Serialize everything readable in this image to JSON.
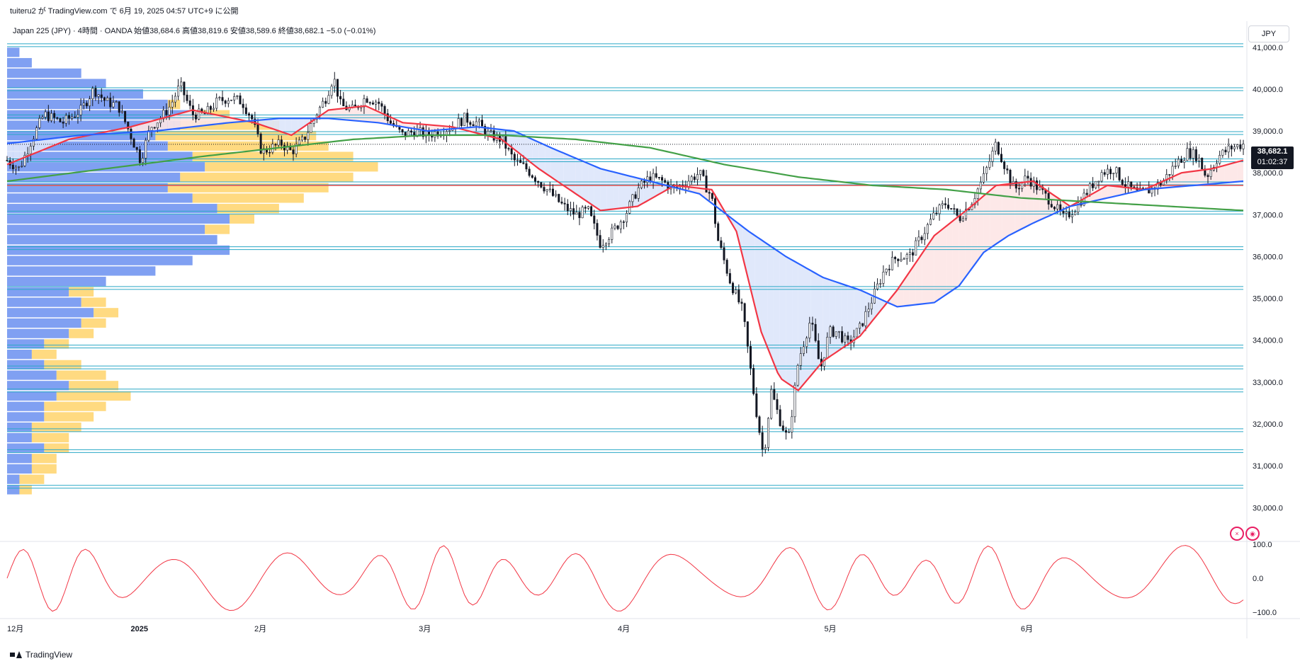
{
  "header": {
    "published_line": "tuiteru2 が TradingView.com で 6月 19, 2025 04:57 UTC+9 に公開",
    "legend": "Japan 225 (JPY) · 4時間 · OANDA  始値38,684.6  高値38,819.6  安値38,589.6  終値38,682.1  −5.0 (−0.01%)",
    "currency": "JPY"
  },
  "last_price": {
    "value": "38,682.1",
    "countdown": "01:02:37"
  },
  "footer": {
    "brand": "TradingView"
  },
  "colors": {
    "candle": "#131722",
    "ma_fast": "#f23645",
    "ma_mid": "#2962ff",
    "ma_slow": "#43a047",
    "level_line": "#2aa8c6",
    "hline_red": "#ef5350",
    "vp_up": "#6a8ff0",
    "vp_down": "#ffd36b",
    "fill_down": "#dde6fb",
    "fill_up": "#fde5e5",
    "oscillator": "#f23645"
  },
  "chart_data": [
    {
      "type": "line",
      "title": "Japan 225 (JPY) · 4時間 · OANDA",
      "x_ticks": [
        "12月",
        "2025",
        "2月",
        "3月",
        "4月",
        "5月",
        "6月"
      ],
      "x_tick_positions": [
        0.0,
        0.1,
        0.2,
        0.333,
        0.494,
        0.661,
        0.82
      ],
      "y_ticks": [
        "41,000.0",
        "40,000.0",
        "39,000.0",
        "38,000.0",
        "37,000.0",
        "36,000.0",
        "35,000.0",
        "34,000.0",
        "33,000.0",
        "32,000.0",
        "31,000.0",
        "30,000.0"
      ],
      "ylim": [
        29700,
        41200
      ],
      "price_close": [
        [
          0.0,
          38300
        ],
        [
          0.01,
          38100
        ],
        [
          0.02,
          38800
        ],
        [
          0.03,
          39400
        ],
        [
          0.045,
          39200
        ],
        [
          0.06,
          39500
        ],
        [
          0.07,
          40000
        ],
        [
          0.08,
          39700
        ],
        [
          0.09,
          39600
        ],
        [
          0.1,
          38900
        ],
        [
          0.108,
          38300
        ],
        [
          0.116,
          39100
        ],
        [
          0.124,
          39300
        ],
        [
          0.132,
          39600
        ],
        [
          0.14,
          40100
        ],
        [
          0.15,
          39400
        ],
        [
          0.16,
          39400
        ],
        [
          0.17,
          39700
        ],
        [
          0.18,
          39800
        ],
        [
          0.19,
          39700
        ],
        [
          0.198,
          39300
        ],
        [
          0.206,
          38500
        ],
        [
          0.214,
          38600
        ],
        [
          0.222,
          38700
        ],
        [
          0.23,
          38500
        ],
        [
          0.24,
          38800
        ],
        [
          0.25,
          39400
        ],
        [
          0.258,
          39800
        ],
        [
          0.264,
          40300
        ],
        [
          0.27,
          39600
        ],
        [
          0.28,
          39500
        ],
        [
          0.29,
          39800
        ],
        [
          0.3,
          39700
        ],
        [
          0.31,
          39200
        ],
        [
          0.32,
          38900
        ],
        [
          0.33,
          39000
        ],
        [
          0.34,
          38900
        ],
        [
          0.35,
          39000
        ],
        [
          0.36,
          39100
        ],
        [
          0.37,
          39300
        ],
        [
          0.38,
          39200
        ],
        [
          0.39,
          38900
        ],
        [
          0.4,
          38800
        ],
        [
          0.41,
          38300
        ],
        [
          0.42,
          38100
        ],
        [
          0.43,
          37800
        ],
        [
          0.44,
          37500
        ],
        [
          0.45,
          37200
        ],
        [
          0.46,
          37000
        ],
        [
          0.47,
          37100
        ],
        [
          0.48,
          36300
        ],
        [
          0.49,
          36600
        ],
        [
          0.5,
          37000
        ],
        [
          0.51,
          37600
        ],
        [
          0.52,
          37900
        ],
        [
          0.53,
          37800
        ],
        [
          0.54,
          37600
        ],
        [
          0.55,
          37800
        ],
        [
          0.56,
          38000
        ],
        [
          0.57,
          37400
        ],
        [
          0.575,
          36400
        ],
        [
          0.585,
          35400
        ],
        [
          0.595,
          34700
        ],
        [
          0.605,
          32500
        ],
        [
          0.612,
          31200
        ],
        [
          0.618,
          32800
        ],
        [
          0.625,
          32100
        ],
        [
          0.632,
          31600
        ],
        [
          0.64,
          33500
        ],
        [
          0.65,
          34500
        ],
        [
          0.658,
          33300
        ],
        [
          0.665,
          34200
        ],
        [
          0.672,
          34200
        ],
        [
          0.68,
          33900
        ],
        [
          0.69,
          34300
        ],
        [
          0.7,
          35000
        ],
        [
          0.71,
          35700
        ],
        [
          0.72,
          36000
        ],
        [
          0.73,
          36000
        ],
        [
          0.74,
          36500
        ],
        [
          0.75,
          37000
        ],
        [
          0.76,
          37300
        ],
        [
          0.77,
          36900
        ],
        [
          0.78,
          37300
        ],
        [
          0.79,
          37900
        ],
        [
          0.8,
          38700
        ],
        [
          0.808,
          38100
        ],
        [
          0.815,
          37600
        ],
        [
          0.825,
          37900
        ],
        [
          0.835,
          37600
        ],
        [
          0.845,
          37300
        ],
        [
          0.855,
          36900
        ],
        [
          0.865,
          37200
        ],
        [
          0.875,
          37600
        ],
        [
          0.885,
          38000
        ],
        [
          0.895,
          38100
        ],
        [
          0.905,
          37700
        ],
        [
          0.915,
          37500
        ],
        [
          0.925,
          37600
        ],
        [
          0.935,
          37800
        ],
        [
          0.945,
          38200
        ],
        [
          0.955,
          38500
        ],
        [
          0.963,
          38400
        ],
        [
          0.97,
          37900
        ],
        [
          0.98,
          38400
        ],
        [
          0.99,
          38600
        ],
        [
          1.0,
          38682
        ]
      ],
      "series": [
        {
          "name": "",
          "values": [
            [
              0.0,
              38200
            ],
            [
              0.05,
              38800
            ],
            [
              0.1,
              39100
            ],
            [
              0.15,
              39500
            ],
            [
              0.2,
              39200
            ],
            [
              0.23,
              38900
            ],
            [
              0.26,
              39500
            ],
            [
              0.29,
              39600
            ],
            [
              0.32,
              39200
            ],
            [
              0.36,
              39100
            ],
            [
              0.4,
              38800
            ],
            [
              0.43,
              38100
            ],
            [
              0.45,
              37700
            ],
            [
              0.48,
              37100
            ],
            [
              0.51,
              37200
            ],
            [
              0.54,
              37700
            ],
            [
              0.57,
              37600
            ],
            [
              0.59,
              36600
            ],
            [
              0.61,
              34200
            ],
            [
              0.625,
              33100
            ],
            [
              0.64,
              32800
            ],
            [
              0.66,
              33500
            ],
            [
              0.69,
              34100
            ],
            [
              0.72,
              35200
            ],
            [
              0.75,
              36500
            ],
            [
              0.78,
              37200
            ],
            [
              0.8,
              37700
            ],
            [
              0.83,
              37800
            ],
            [
              0.86,
              37200
            ],
            [
              0.89,
              37700
            ],
            [
              0.92,
              37600
            ],
            [
              0.95,
              38000
            ],
            [
              0.975,
              38100
            ],
            [
              1.0,
              38300
            ]
          ]
        },
        {
          "name": "",
          "values": [
            [
              0.0,
              38700
            ],
            [
              0.06,
              38900
            ],
            [
              0.12,
              39000
            ],
            [
              0.18,
              39200
            ],
            [
              0.22,
              39300
            ],
            [
              0.26,
              39300
            ],
            [
              0.3,
              39200
            ],
            [
              0.34,
              39000
            ],
            [
              0.38,
              39100
            ],
            [
              0.41,
              39000
            ],
            [
              0.44,
              38600
            ],
            [
              0.48,
              38100
            ],
            [
              0.52,
              37800
            ],
            [
              0.56,
              37500
            ],
            [
              0.6,
              36600
            ],
            [
              0.63,
              36000
            ],
            [
              0.66,
              35500
            ],
            [
              0.69,
              35200
            ],
            [
              0.72,
              34800
            ],
            [
              0.75,
              34900
            ],
            [
              0.77,
              35300
            ],
            [
              0.79,
              36100
            ],
            [
              0.81,
              36500
            ],
            [
              0.83,
              36800
            ],
            [
              0.86,
              37200
            ],
            [
              0.89,
              37400
            ],
            [
              0.92,
              37600
            ],
            [
              0.96,
              37700
            ],
            [
              1.0,
              37800
            ]
          ]
        },
        {
          "name": "",
          "values": [
            [
              0.0,
              37800
            ],
            [
              0.08,
              38100
            ],
            [
              0.16,
              38400
            ],
            [
              0.22,
              38600
            ],
            [
              0.28,
              38800
            ],
            [
              0.34,
              38900
            ],
            [
              0.4,
              38900
            ],
            [
              0.46,
              38800
            ],
            [
              0.52,
              38600
            ],
            [
              0.58,
              38200
            ],
            [
              0.64,
              37900
            ],
            [
              0.7,
              37700
            ],
            [
              0.76,
              37600
            ],
            [
              0.82,
              37400
            ],
            [
              0.88,
              37300
            ],
            [
              0.94,
              37200
            ],
            [
              1.0,
              37100
            ]
          ]
        }
      ],
      "support_resistance_levels": [
        41050,
        40000,
        39350,
        38950,
        38300,
        37750,
        37050,
        36200,
        35250,
        33850,
        33350,
        32800,
        31850,
        31350,
        30500
      ],
      "red_horizontal_level": 37700,
      "volume_profile": {
        "up_widths": [
          0.01,
          0.02,
          0.06,
          0.08,
          0.11,
          0.13,
          0.15,
          0.14,
          0.12,
          0.13,
          0.15,
          0.16,
          0.14,
          0.13,
          0.15,
          0.17,
          0.18,
          0.16,
          0.17,
          0.18,
          0.15,
          0.12,
          0.08,
          0.05,
          0.06,
          0.07,
          0.06,
          0.05,
          0.03,
          0.02,
          0.03,
          0.04,
          0.05,
          0.04,
          0.03,
          0.03,
          0.02,
          0.02,
          0.03,
          0.02,
          0.02,
          0.01,
          0.01
        ],
        "down_widths": [
          0.0,
          0.02,
          0.05,
          0.08,
          0.11,
          0.14,
          0.18,
          0.22,
          0.25,
          0.26,
          0.28,
          0.3,
          0.28,
          0.26,
          0.24,
          0.22,
          0.2,
          0.18,
          0.16,
          0.14,
          0.12,
          0.09,
          0.06,
          0.07,
          0.08,
          0.09,
          0.08,
          0.07,
          0.05,
          0.04,
          0.06,
          0.08,
          0.09,
          0.1,
          0.08,
          0.07,
          0.06,
          0.05,
          0.05,
          0.04,
          0.04,
          0.03,
          0.02
        ]
      }
    },
    {
      "type": "line",
      "title": "",
      "y_ticks": [
        "100.0",
        "0.0",
        "−100.0"
      ],
      "ylim": [
        -115,
        115
      ],
      "values_count": 300
    }
  ]
}
